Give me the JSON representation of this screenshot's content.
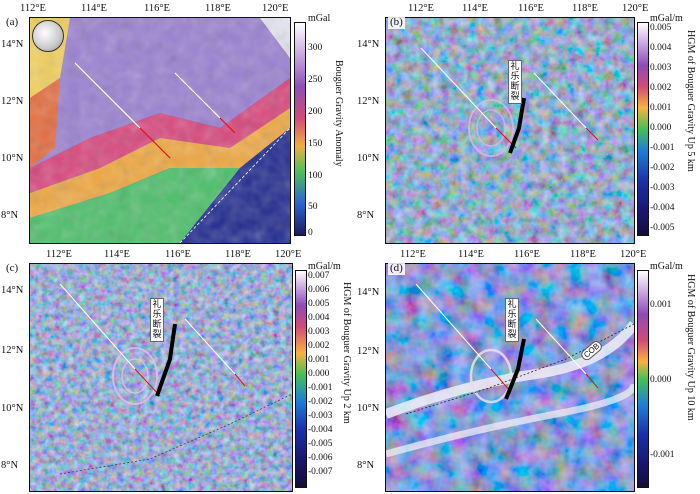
{
  "panels": [
    {
      "id": "a",
      "label": "(a)",
      "x_ticks": [
        "112°E",
        "114°E",
        "116°E",
        "118°E",
        "120°E"
      ],
      "y_ticks": [
        "14°N",
        "12°N",
        "10°N",
        "8°N"
      ],
      "colorbar": {
        "unit": "mGal",
        "title": "Bouguer Gravity Anomaly",
        "ticks": [
          "300",
          "250",
          "200",
          "150",
          "100",
          "50",
          "0"
        ]
      },
      "fault_label": ""
    },
    {
      "id": "b",
      "label": "(b)",
      "x_ticks": [
        "112°E",
        "114°E",
        "116°E",
        "118°E",
        "120°E"
      ],
      "y_ticks": [
        "14°N",
        "12°N",
        "10°N",
        "8°N"
      ],
      "colorbar": {
        "unit": "mGal/m",
        "title": "HGM of Bouguer Gravity Up 5 km",
        "ticks": [
          "0.005",
          "0.004",
          "0.003",
          "0.002",
          "0.001",
          "0.000",
          "-0.001",
          "-0.002",
          "-0.003",
          "-0.004",
          "-0.005"
        ]
      },
      "fault_label": "礼乐断裂"
    },
    {
      "id": "c",
      "label": "(c)",
      "x_ticks": [
        "112°E",
        "114°E",
        "116°E",
        "118°E",
        "120°E"
      ],
      "y_ticks": [
        "14°N",
        "12°N",
        "10°N",
        "8°N"
      ],
      "colorbar": {
        "unit": "mGal/m",
        "title": "HGM of Bouguer Gravity Up 2 km",
        "ticks": [
          "0.007",
          "0.006",
          "0.005",
          "0.004",
          "0.003",
          "0.002",
          "0.001",
          "0.000",
          "-0.001",
          "-0.002",
          "-0.003",
          "-0.004",
          "-0.005",
          "-0.006",
          "-0.007"
        ]
      },
      "fault_label": "礼乐断裂"
    },
    {
      "id": "d",
      "label": "(d)",
      "x_ticks": [
        "112°E",
        "114°E",
        "116°E",
        "118°E",
        "120°E"
      ],
      "y_ticks": [
        "14°N",
        "12°N",
        "10°N",
        "8°N"
      ],
      "colorbar": {
        "unit": "mGal/m",
        "title": "HGM of Bouguer Gravity Up 10 km",
        "ticks": [
          "0.001",
          "0.000",
          "-0.001"
        ]
      },
      "fault_label": "礼乐断裂",
      "cob_label": "COB"
    }
  ],
  "colors": {
    "frame": "#111111",
    "fault_white": "#ffffff",
    "fault_red": "#e01010",
    "fault_black": "#000000"
  }
}
